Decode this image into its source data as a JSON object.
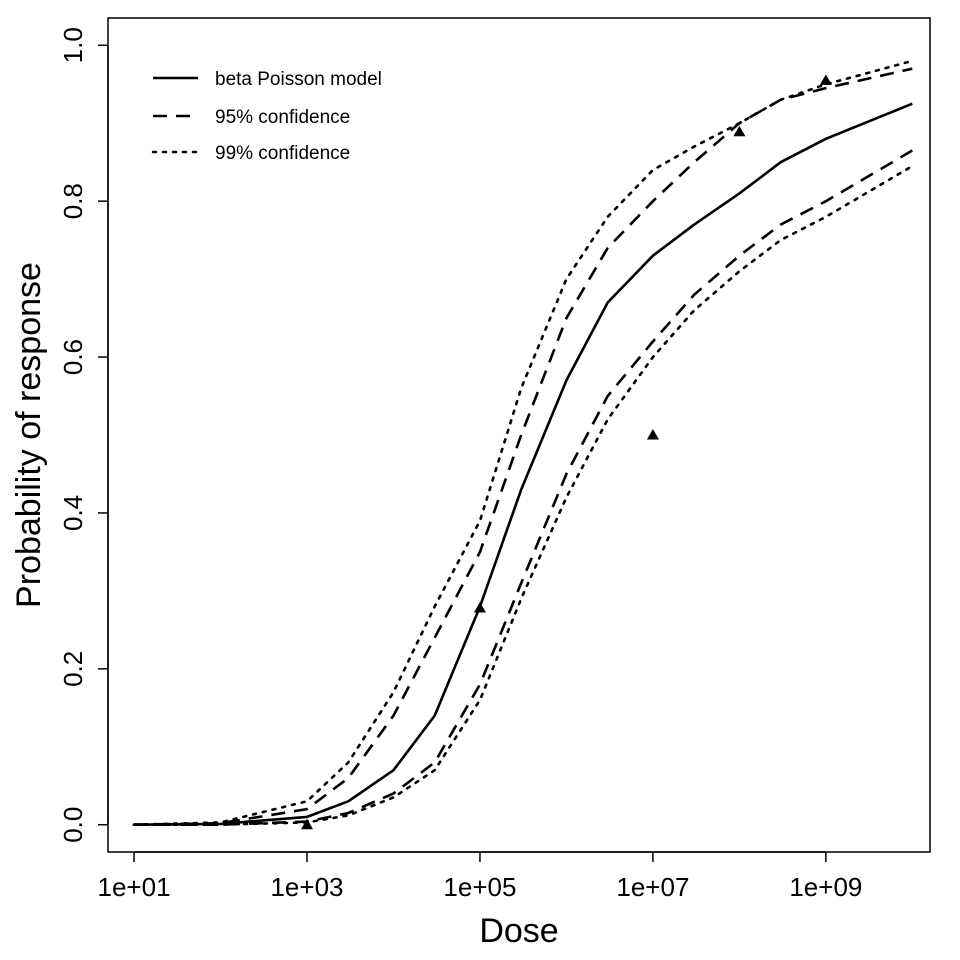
{
  "chart_data": {
    "type": "line",
    "title": "",
    "xlabel": "Dose",
    "ylabel": "Probability of response",
    "x_scale": "log10",
    "xlim": [
      5,
      16000000000
    ],
    "ylim": [
      -0.035,
      1.035
    ],
    "x_ticks": [
      10,
      1000,
      100000,
      10000000,
      1000000000
    ],
    "x_tick_labels": [
      "1e+01",
      "1e+03",
      "1e+05",
      "1e+07",
      "1e+09"
    ],
    "y_ticks": [
      0,
      0.2,
      0.4,
      0.6,
      0.8,
      1
    ],
    "y_tick_labels": [
      "0.0",
      "0.2",
      "0.4",
      "0.6",
      "0.8",
      "1.0"
    ],
    "grid": false,
    "legend_position": "top-left",
    "series": [
      {
        "name": "beta Poisson model",
        "style": "solid",
        "x": [
          10,
          100,
          1000,
          3000,
          10000,
          30000,
          100000,
          300000,
          1000000,
          3000000,
          10000000,
          30000000,
          100000000,
          300000000,
          1000000000,
          10000000000
        ],
        "y": [
          0.0,
          0.001,
          0.01,
          0.03,
          0.07,
          0.14,
          0.28,
          0.43,
          0.57,
          0.67,
          0.73,
          0.77,
          0.81,
          0.85,
          0.88,
          0.925
        ]
      },
      {
        "name": "95% confidence",
        "style": "dashed",
        "x": [
          10,
          100,
          1000,
          3000,
          10000,
          30000,
          100000,
          300000,
          1000000,
          3000000,
          10000000,
          30000000,
          100000000,
          300000000,
          1000000000,
          10000000000
        ],
        "y": [
          0.0,
          0.002,
          0.02,
          0.06,
          0.14,
          0.24,
          0.35,
          0.5,
          0.65,
          0.74,
          0.8,
          0.85,
          0.9,
          0.93,
          0.945,
          0.97
        ]
      },
      {
        "name": "95% confidence",
        "style": "dashed",
        "x": [
          10,
          100,
          1000,
          3000,
          10000,
          30000,
          100000,
          300000,
          1000000,
          3000000,
          10000000,
          30000000,
          100000000,
          300000000,
          1000000000,
          10000000000
        ],
        "y": [
          0.0,
          0.0,
          0.004,
          0.015,
          0.04,
          0.08,
          0.18,
          0.31,
          0.45,
          0.55,
          0.62,
          0.68,
          0.73,
          0.77,
          0.8,
          0.865
        ]
      },
      {
        "name": "99% confidence",
        "style": "dotted",
        "x": [
          10,
          100,
          1000,
          3000,
          10000,
          30000,
          100000,
          300000,
          1000000,
          3000000,
          10000000,
          30000000,
          100000000,
          300000000,
          1000000000,
          10000000000
        ],
        "y": [
          0.0,
          0.003,
          0.03,
          0.08,
          0.17,
          0.28,
          0.39,
          0.56,
          0.7,
          0.78,
          0.84,
          0.87,
          0.9,
          0.93,
          0.95,
          0.98
        ]
      },
      {
        "name": "99% confidence",
        "style": "dotted",
        "x": [
          10,
          100,
          1000,
          3000,
          10000,
          30000,
          100000,
          300000,
          1000000,
          3000000,
          10000000,
          30000000,
          100000000,
          300000000,
          1000000000,
          10000000000
        ],
        "y": [
          0.0,
          0.0,
          0.003,
          0.012,
          0.035,
          0.07,
          0.16,
          0.29,
          0.42,
          0.52,
          0.6,
          0.66,
          0.71,
          0.75,
          0.78,
          0.845
        ]
      }
    ],
    "observed_points": {
      "marker": "triangle",
      "x": [
        1000,
        100000,
        10000000,
        100000000,
        1000000000
      ],
      "y": [
        0.0,
        0.278,
        0.5,
        0.889,
        0.955
      ]
    },
    "legend_entries": [
      {
        "label": "beta Poisson model",
        "style": "solid"
      },
      {
        "label": "95% confidence",
        "style": "dashed"
      },
      {
        "label": "99% confidence",
        "style": "dotted"
      }
    ]
  }
}
